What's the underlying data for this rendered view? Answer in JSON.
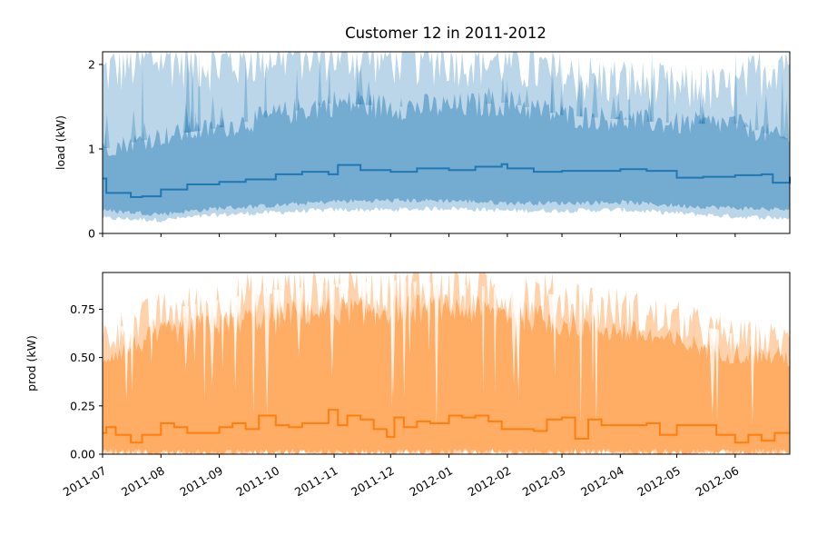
{
  "colors": {
    "load": "#1f77b4",
    "prod": "#ff7f0e",
    "background": "#ffffff"
  },
  "chart_data": [
    {
      "type": "area",
      "title": "Customer 12 in 2011-2012",
      "xlabel": "",
      "ylabel": "load (kW)",
      "xlim": [
        "2011-07-01",
        "2012-06-30"
      ],
      "ylim": [
        0,
        2.15
      ],
      "yticks": [
        0,
        1,
        2
      ],
      "ytick_labels": [
        "0",
        "1",
        "2"
      ],
      "grid": false,
      "series": [
        {
          "role": "monthly-mean-step",
          "x": [
            "2011-07-01",
            "2011-07-03",
            "2011-07-16",
            "2011-07-22",
            "2011-08-01",
            "2011-08-15",
            "2011-09-01",
            "2011-09-15",
            "2011-10-01",
            "2011-10-15",
            "2011-10-29",
            "2011-11-03",
            "2011-11-15",
            "2011-12-01",
            "2011-12-15",
            "2012-01-01",
            "2012-01-15",
            "2012-01-29",
            "2012-02-01",
            "2012-02-15",
            "2012-03-01",
            "2012-03-15",
            "2012-04-01",
            "2012-04-15",
            "2012-05-01",
            "2012-05-15",
            "2012-06-01",
            "2012-06-15",
            "2012-06-21",
            "2012-06-30"
          ],
          "y": [
            0.65,
            0.48,
            0.43,
            0.44,
            0.52,
            0.58,
            0.61,
            0.64,
            0.7,
            0.73,
            0.7,
            0.81,
            0.75,
            0.73,
            0.77,
            0.75,
            0.79,
            0.82,
            0.77,
            0.73,
            0.74,
            0.74,
            0.76,
            0.74,
            0.66,
            0.67,
            0.69,
            0.7,
            0.6,
            0.67
          ]
        },
        {
          "role": "percentile-band-inner",
          "x": [
            "2011-07-01",
            "2011-08-01",
            "2011-09-01",
            "2011-10-01",
            "2011-11-01",
            "2011-12-01",
            "2012-01-01",
            "2012-02-01",
            "2012-03-01",
            "2012-04-01",
            "2012-05-01",
            "2012-06-01",
            "2012-06-30"
          ],
          "lower": [
            0.27,
            0.23,
            0.3,
            0.33,
            0.38,
            0.39,
            0.39,
            0.36,
            0.36,
            0.37,
            0.33,
            0.3,
            0.28
          ],
          "upper": [
            1.0,
            1.15,
            1.25,
            1.4,
            1.55,
            1.5,
            1.5,
            1.55,
            1.4,
            1.35,
            1.3,
            1.3,
            1.1
          ]
        },
        {
          "role": "percentile-band-outer",
          "x": [
            "2011-07-01",
            "2011-08-01",
            "2011-09-01",
            "2011-10-01",
            "2011-11-01",
            "2011-12-01",
            "2012-01-01",
            "2012-02-01",
            "2012-03-01",
            "2012-04-01",
            "2012-05-01",
            "2012-06-01",
            "2012-06-30"
          ],
          "lower": [
            0.18,
            0.16,
            0.22,
            0.25,
            0.28,
            0.28,
            0.3,
            0.27,
            0.27,
            0.28,
            0.24,
            0.2,
            0.18
          ],
          "upper": [
            1.9,
            2.1,
            2.0,
            2.15,
            2.15,
            2.1,
            2.1,
            2.05,
            1.85,
            1.8,
            1.7,
            1.7,
            2.15
          ]
        }
      ]
    },
    {
      "type": "area",
      "title": "",
      "xlabel": "",
      "ylabel": "prod (kW)",
      "xlim": [
        "2011-07-01",
        "2012-06-30"
      ],
      "ylim": [
        0,
        0.94
      ],
      "yticks": [
        0,
        0.25,
        0.5,
        0.75
      ],
      "ytick_labels": [
        "0.00",
        "0.25",
        "0.50",
        "0.75"
      ],
      "xticks": [
        "2011-07-01",
        "2011-08-01",
        "2011-09-01",
        "2011-10-01",
        "2011-11-01",
        "2011-12-01",
        "2012-01-01",
        "2012-02-01",
        "2012-03-01",
        "2012-04-01",
        "2012-05-01",
        "2012-06-01"
      ],
      "xtick_labels": [
        "2011-07",
        "2011-08",
        "2011-09",
        "2011-10",
        "2011-11",
        "2011-12",
        "2012-01",
        "2012-02",
        "2012-03",
        "2012-04",
        "2012-05",
        "2012-06"
      ],
      "grid": false,
      "series": [
        {
          "role": "monthly-mean-step",
          "x": [
            "2011-07-01",
            "2011-07-03",
            "2011-07-08",
            "2011-07-16",
            "2011-07-22",
            "2011-08-01",
            "2011-08-08",
            "2011-08-15",
            "2011-09-01",
            "2011-09-08",
            "2011-09-15",
            "2011-09-22",
            "2011-10-01",
            "2011-10-08",
            "2011-10-15",
            "2011-10-22",
            "2011-10-29",
            "2011-11-03",
            "2011-11-08",
            "2011-11-15",
            "2011-11-22",
            "2011-11-29",
            "2011-12-03",
            "2011-12-08",
            "2011-12-15",
            "2011-12-22",
            "2012-01-01",
            "2012-01-08",
            "2012-01-15",
            "2012-01-22",
            "2012-01-29",
            "2012-02-01",
            "2012-02-15",
            "2012-02-22",
            "2012-03-01",
            "2012-03-08",
            "2012-03-15",
            "2012-03-22",
            "2012-04-01",
            "2012-04-15",
            "2012-04-22",
            "2012-05-01",
            "2012-05-15",
            "2012-05-22",
            "2012-06-01",
            "2012-06-08",
            "2012-06-15",
            "2012-06-22",
            "2012-06-30"
          ],
          "y": [
            0.11,
            0.14,
            0.1,
            0.06,
            0.1,
            0.16,
            0.14,
            0.11,
            0.14,
            0.16,
            0.13,
            0.2,
            0.15,
            0.14,
            0.16,
            0.16,
            0.23,
            0.15,
            0.2,
            0.18,
            0.13,
            0.09,
            0.19,
            0.14,
            0.17,
            0.16,
            0.2,
            0.19,
            0.2,
            0.17,
            0.13,
            0.13,
            0.12,
            0.18,
            0.19,
            0.08,
            0.18,
            0.15,
            0.15,
            0.16,
            0.1,
            0.15,
            0.15,
            0.1,
            0.06,
            0.1,
            0.07,
            0.11,
            0.11
          ]
        },
        {
          "role": "percentile-band-inner",
          "x": [
            "2011-07-01",
            "2011-08-01",
            "2011-09-01",
            "2011-10-01",
            "2011-11-01",
            "2011-12-01",
            "2012-01-01",
            "2012-02-01",
            "2012-03-01",
            "2012-04-01",
            "2012-05-01",
            "2012-06-01",
            "2012-06-30"
          ],
          "lower": [
            0,
            0,
            0,
            0,
            0,
            0,
            0,
            0,
            0,
            0,
            0,
            0,
            0
          ],
          "upper": [
            0.5,
            0.62,
            0.68,
            0.72,
            0.74,
            0.75,
            0.75,
            0.73,
            0.68,
            0.64,
            0.58,
            0.52,
            0.5
          ]
        },
        {
          "role": "percentile-band-outer",
          "x": [
            "2011-07-01",
            "2011-08-01",
            "2011-09-01",
            "2011-10-01",
            "2011-11-01",
            "2011-12-01",
            "2012-01-01",
            "2012-02-01",
            "2012-03-01",
            "2012-04-01",
            "2012-05-01",
            "2012-06-01",
            "2012-06-30"
          ],
          "lower": [
            0,
            0,
            0,
            0,
            0,
            0,
            0,
            0,
            0,
            0,
            0,
            0,
            0
          ],
          "upper": [
            0.6,
            0.72,
            0.78,
            0.83,
            0.86,
            0.88,
            0.86,
            0.84,
            0.8,
            0.74,
            0.68,
            0.6,
            0.58
          ]
        }
      ]
    }
  ]
}
